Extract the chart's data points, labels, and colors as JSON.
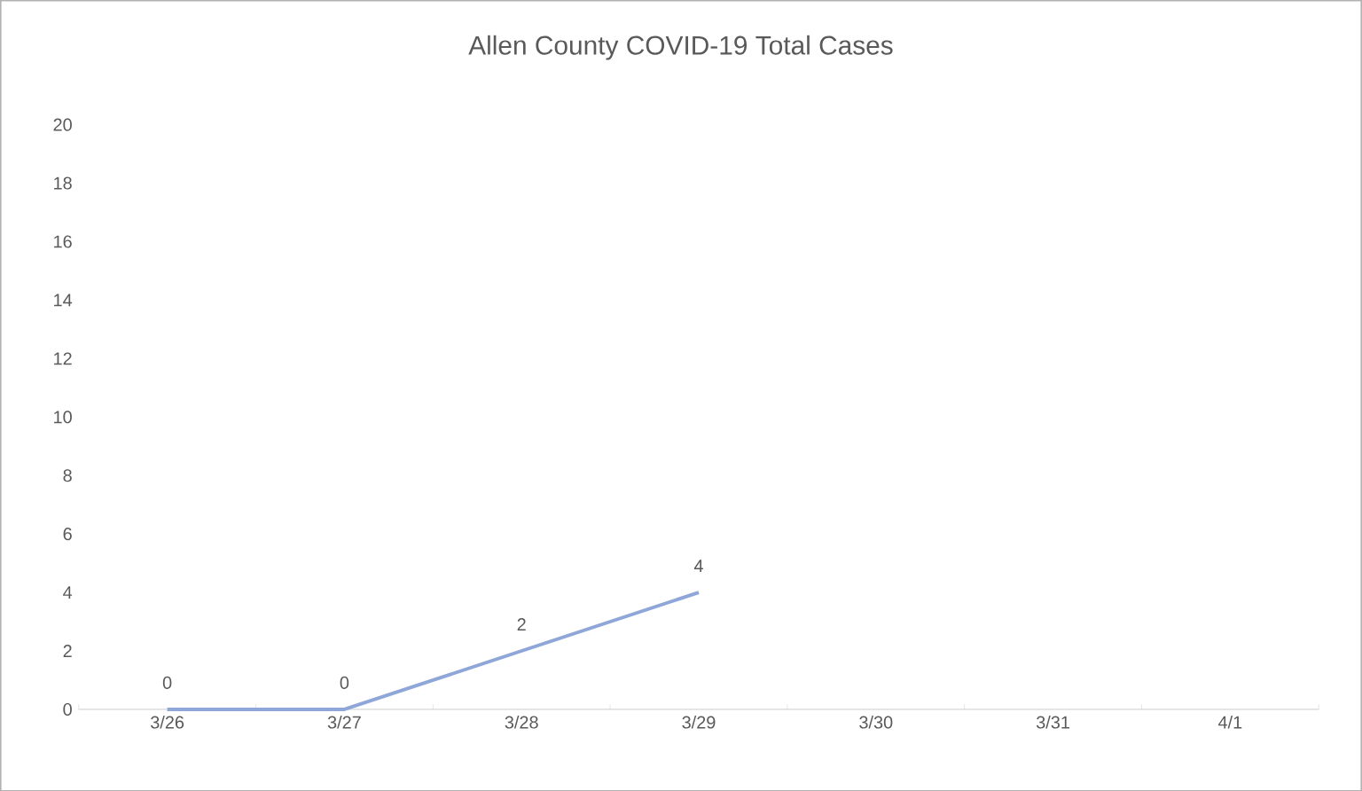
{
  "chart_data": {
    "type": "line",
    "title": "Allen County COVID-19 Total Cases",
    "categories": [
      "3/26",
      "3/27",
      "3/28",
      "3/29",
      "3/30",
      "3/31",
      "4/1"
    ],
    "values": [
      0,
      0,
      2,
      4,
      null,
      null,
      null
    ],
    "color": "#8fa6d9",
    "ylim": [
      0,
      20
    ],
    "yticks": [
      0,
      2,
      4,
      6,
      8,
      10,
      12,
      14,
      16,
      18,
      20
    ],
    "data_labels": true,
    "marker": "none",
    "line_style": "solid"
  }
}
